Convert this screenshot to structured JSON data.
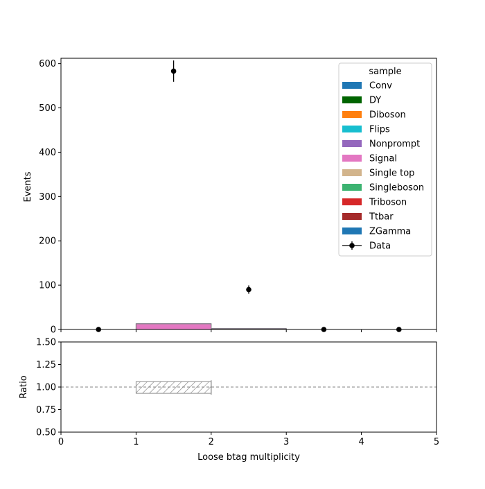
{
  "chart_data": {
    "type": "bar",
    "x_label": "Loose btag multiplicity",
    "bin_edges": [
      0,
      1,
      2,
      3,
      4,
      5
    ],
    "x_ticks": [
      "0",
      "1",
      "2",
      "3",
      "4",
      "5"
    ],
    "main": {
      "ylabel": "Events",
      "ylim": [
        0,
        612
      ],
      "y_ticks": [
        {
          "value": 0,
          "label": "0"
        },
        {
          "value": 100,
          "label": "100"
        },
        {
          "value": 200,
          "label": "200"
        },
        {
          "value": 300,
          "label": "300"
        },
        {
          "value": 400,
          "label": "400"
        },
        {
          "value": 500,
          "label": "500"
        },
        {
          "value": 600,
          "label": "600"
        }
      ],
      "stack": [
        {
          "name": "Signal",
          "color": "#e377c2",
          "values": [
            0,
            12,
            1,
            0,
            0
          ]
        },
        {
          "name": "Single top",
          "color": "#d2b48c",
          "values": [
            0,
            0.3,
            0.5,
            0,
            0
          ]
        },
        {
          "name": "Nonprompt",
          "color": "#9467bd",
          "values": [
            0,
            0.5,
            0.5,
            0,
            0
          ]
        }
      ],
      "data_points": {
        "name": "Data",
        "x": [
          0.5,
          1.5,
          2.5,
          3.5,
          4.5
        ],
        "y": [
          0,
          583,
          90,
          0,
          0
        ],
        "yerr": [
          0,
          24,
          9.5,
          0,
          0
        ]
      }
    },
    "legend": {
      "title": "sample",
      "position": "upper right",
      "entries": [
        {
          "label": "Conv",
          "color": "#1f77b4",
          "kind": "patch"
        },
        {
          "label": "DY",
          "color": "#006400",
          "kind": "patch"
        },
        {
          "label": "Diboson",
          "color": "#ff7f0e",
          "kind": "patch"
        },
        {
          "label": "Flips",
          "color": "#17becf",
          "kind": "patch"
        },
        {
          "label": "Nonprompt",
          "color": "#9467bd",
          "kind": "patch"
        },
        {
          "label": "Signal",
          "color": "#e377c2",
          "kind": "patch"
        },
        {
          "label": "Single top",
          "color": "#d2b48c",
          "kind": "patch"
        },
        {
          "label": "Singleboson",
          "color": "#3cb371",
          "kind": "patch"
        },
        {
          "label": "Triboson",
          "color": "#d62728",
          "kind": "patch"
        },
        {
          "label": "Ttbar",
          "color": "#a52a2a",
          "kind": "patch"
        },
        {
          "label": "ZGamma",
          "color": "#1f77b4",
          "kind": "patch"
        },
        {
          "label": "Data",
          "color": "#000000",
          "kind": "errorbar"
        }
      ]
    },
    "ratio": {
      "ylabel": "Ratio",
      "ylim": [
        0.5,
        1.5
      ],
      "y_ticks": [
        {
          "value": 0.5,
          "label": "0.50"
        },
        {
          "value": 0.75,
          "label": "0.75"
        },
        {
          "value": 1.0,
          "label": "1.00"
        },
        {
          "value": 1.25,
          "label": "1.25"
        },
        {
          "value": 1.5,
          "label": "1.50"
        }
      ],
      "reference_line": 1.0,
      "uncertainty_band": {
        "x_start": 1,
        "x_end": 2,
        "low": 0.93,
        "high": 1.06
      }
    }
  }
}
